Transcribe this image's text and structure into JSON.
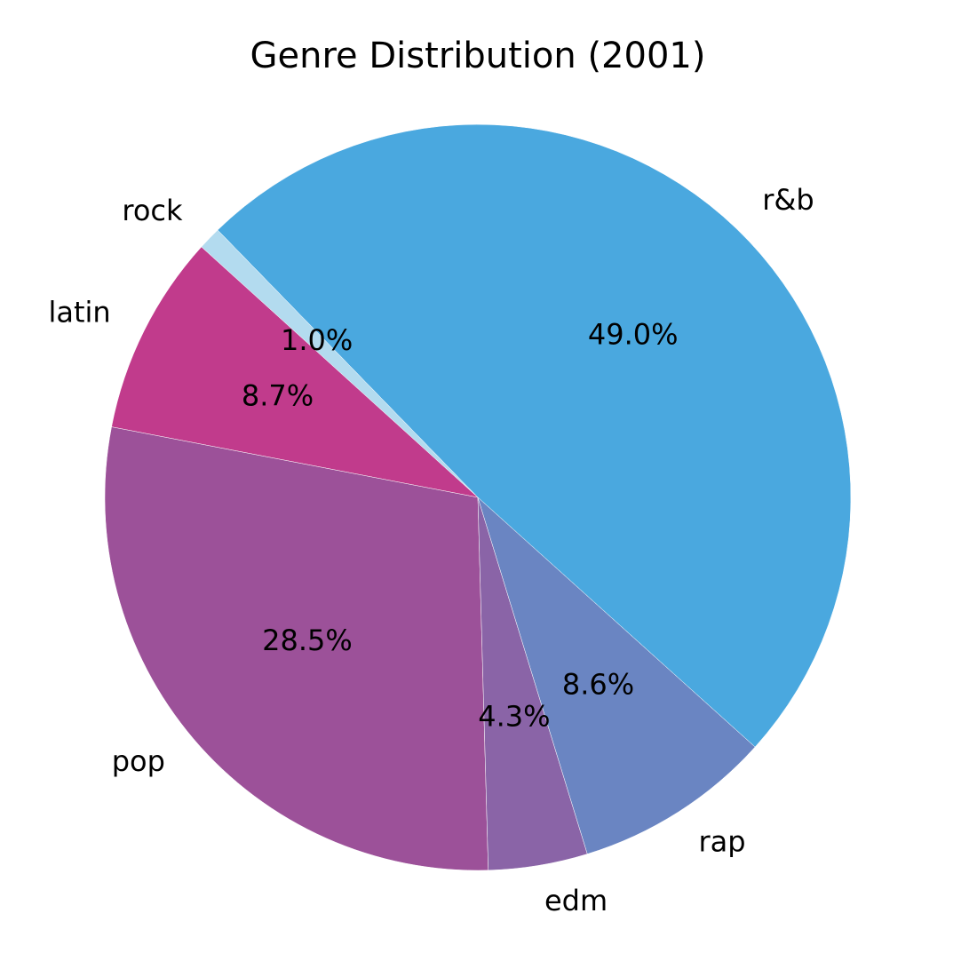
{
  "chart_data": {
    "type": "pie",
    "title": "Genre Distribution (2001)",
    "start_angle_deg": -42,
    "direction": "counterclockwise",
    "slices": [
      {
        "label": "r&b",
        "value": 49.0,
        "pct_text": "49.0%",
        "color": "#4aa8df"
      },
      {
        "label": "rock",
        "value": 1.0,
        "pct_text": "1.0%",
        "color": "#b3dbef"
      },
      {
        "label": "latin",
        "value": 8.7,
        "pct_text": "8.7%",
        "color": "#c13b8c"
      },
      {
        "label": "pop",
        "value": 28.5,
        "pct_text": "28.5%",
        "color": "#9c5199"
      },
      {
        "label": "edm",
        "value": 4.3,
        "pct_text": "4.3%",
        "color": "#8a64a7"
      },
      {
        "label": "rap",
        "value": 8.6,
        "pct_text": "8.6%",
        "color": "#6a85c2"
      }
    ]
  }
}
